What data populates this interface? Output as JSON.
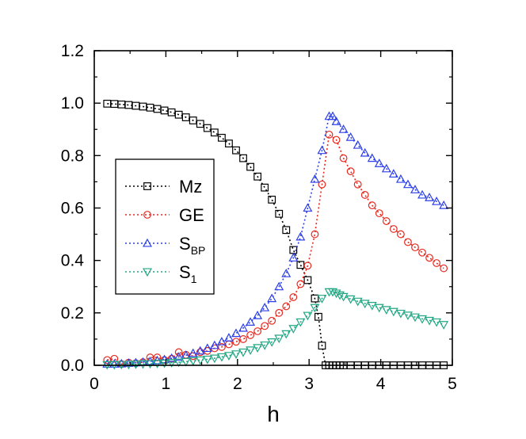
{
  "chart_data": {
    "type": "scatter",
    "title": "",
    "xlabel": "h",
    "ylabel": "",
    "xlim": [
      0,
      5
    ],
    "ylim": [
      0,
      1.2
    ],
    "x_ticks": [
      "0",
      "1",
      "2",
      "3",
      "4",
      "5"
    ],
    "y_ticks": [
      "0.0",
      "0.2",
      "0.4",
      "0.6",
      "0.8",
      "1.0",
      "1.2"
    ],
    "x_tick_values": [
      0,
      1,
      2,
      3,
      4,
      5
    ],
    "y_tick_values": [
      0.0,
      0.2,
      0.4,
      0.6,
      0.8,
      1.0,
      1.2
    ],
    "legend_position": "middle-left",
    "series": [
      {
        "name": "Mz",
        "label_main": "Mz",
        "label_sub": "",
        "color": "#000000",
        "marker": "square",
        "x": [
          0.18,
          0.28,
          0.38,
          0.48,
          0.58,
          0.68,
          0.78,
          0.88,
          0.98,
          1.08,
          1.18,
          1.28,
          1.38,
          1.48,
          1.58,
          1.68,
          1.78,
          1.88,
          1.98,
          2.08,
          2.18,
          2.28,
          2.38,
          2.48,
          2.58,
          2.68,
          2.78,
          2.88,
          2.98,
          3.08,
          3.13,
          3.18,
          3.23,
          3.28,
          3.33,
          3.38,
          3.43,
          3.48,
          3.58,
          3.68,
          3.78,
          3.88,
          3.98,
          4.08,
          4.18,
          4.28,
          4.38,
          4.48,
          4.58,
          4.68,
          4.78,
          4.88
        ],
        "y": [
          0.998,
          0.997,
          0.995,
          0.993,
          0.99,
          0.987,
          0.983,
          0.978,
          0.972,
          0.965,
          0.956,
          0.946,
          0.934,
          0.921,
          0.905,
          0.888,
          0.868,
          0.846,
          0.82,
          0.79,
          0.757,
          0.72,
          0.678,
          0.632,
          0.578,
          0.516,
          0.44,
          0.383,
          0.325,
          0.255,
          0.185,
          0.075,
          0.0,
          0.0,
          0.0,
          0.0,
          0.0,
          0.0,
          0.0,
          0.0,
          0.0,
          0.0,
          0.0,
          0.0,
          0.0,
          0.0,
          0.0,
          0.0,
          0.0,
          0.0,
          0.0,
          0.0
        ]
      },
      {
        "name": "GE",
        "label_main": "GE",
        "label_sub": "",
        "color": "#e8281e",
        "marker": "circle",
        "x": [
          0.18,
          0.28,
          0.38,
          0.48,
          0.58,
          0.68,
          0.78,
          0.88,
          0.98,
          1.08,
          1.18,
          1.28,
          1.38,
          1.48,
          1.58,
          1.68,
          1.78,
          1.88,
          1.98,
          2.08,
          2.18,
          2.28,
          2.38,
          2.48,
          2.58,
          2.68,
          2.78,
          2.88,
          2.98,
          3.08,
          3.18,
          3.28,
          3.38,
          3.48,
          3.58,
          3.68,
          3.78,
          3.88,
          3.98,
          4.08,
          4.18,
          4.28,
          4.38,
          4.48,
          4.58,
          4.68,
          4.78,
          4.88
        ],
        "y": [
          0.02,
          0.025,
          0.005,
          0.01,
          0.008,
          0.012,
          0.03,
          0.03,
          0.02,
          0.025,
          0.05,
          0.04,
          0.035,
          0.05,
          0.055,
          0.065,
          0.07,
          0.08,
          0.09,
          0.1,
          0.115,
          0.13,
          0.15,
          0.17,
          0.2,
          0.225,
          0.26,
          0.31,
          0.38,
          0.5,
          0.69,
          0.88,
          0.86,
          0.79,
          0.74,
          0.69,
          0.65,
          0.61,
          0.58,
          0.55,
          0.52,
          0.5,
          0.47,
          0.45,
          0.43,
          0.41,
          0.39,
          0.37
        ]
      },
      {
        "name": "SBP",
        "label_main": "S",
        "label_sub": "BP",
        "color": "#2c3fe8",
        "marker": "triangle-up",
        "x": [
          0.18,
          0.28,
          0.38,
          0.48,
          0.58,
          0.68,
          0.78,
          0.88,
          0.98,
          1.08,
          1.18,
          1.28,
          1.38,
          1.48,
          1.58,
          1.68,
          1.78,
          1.88,
          1.98,
          2.08,
          2.18,
          2.28,
          2.38,
          2.48,
          2.58,
          2.68,
          2.78,
          2.88,
          2.98,
          3.08,
          3.18,
          3.28,
          3.33,
          3.38,
          3.48,
          3.58,
          3.68,
          3.78,
          3.88,
          3.98,
          4.08,
          4.18,
          4.28,
          4.38,
          4.48,
          4.58,
          4.68,
          4.78,
          4.88
        ],
        "y": [
          0.005,
          0.005,
          0.006,
          0.008,
          0.01,
          0.012,
          0.015,
          0.018,
          0.022,
          0.027,
          0.032,
          0.038,
          0.046,
          0.055,
          0.065,
          0.076,
          0.09,
          0.105,
          0.122,
          0.142,
          0.165,
          0.19,
          0.22,
          0.255,
          0.3,
          0.35,
          0.41,
          0.49,
          0.6,
          0.71,
          0.82,
          0.95,
          0.95,
          0.93,
          0.9,
          0.87,
          0.84,
          0.81,
          0.79,
          0.77,
          0.75,
          0.73,
          0.71,
          0.69,
          0.67,
          0.65,
          0.64,
          0.625,
          0.61
        ]
      },
      {
        "name": "S1",
        "label_main": "S",
        "label_sub": "1",
        "color": "#22a784",
        "marker": "triangle-down",
        "x": [
          0.18,
          0.28,
          0.38,
          0.48,
          0.58,
          0.68,
          0.78,
          0.88,
          0.98,
          1.08,
          1.18,
          1.28,
          1.38,
          1.48,
          1.58,
          1.68,
          1.78,
          1.88,
          1.98,
          2.08,
          2.18,
          2.28,
          2.38,
          2.48,
          2.58,
          2.68,
          2.78,
          2.88,
          2.98,
          3.08,
          3.18,
          3.28,
          3.33,
          3.38,
          3.43,
          3.48,
          3.58,
          3.68,
          3.78,
          3.88,
          3.98,
          4.08,
          4.18,
          4.28,
          4.38,
          4.48,
          4.58,
          4.68,
          4.78,
          4.88
        ],
        "y": [
          0.002,
          0.002,
          0.003,
          0.003,
          0.004,
          0.005,
          0.006,
          0.007,
          0.008,
          0.01,
          0.012,
          0.014,
          0.017,
          0.02,
          0.023,
          0.027,
          0.032,
          0.037,
          0.043,
          0.05,
          0.058,
          0.067,
          0.077,
          0.089,
          0.103,
          0.12,
          0.14,
          0.165,
          0.19,
          0.22,
          0.255,
          0.28,
          0.28,
          0.275,
          0.268,
          0.262,
          0.253,
          0.244,
          0.236,
          0.228,
          0.22,
          0.212,
          0.205,
          0.198,
          0.191,
          0.184,
          0.177,
          0.171,
          0.165,
          0.155
        ]
      }
    ]
  }
}
